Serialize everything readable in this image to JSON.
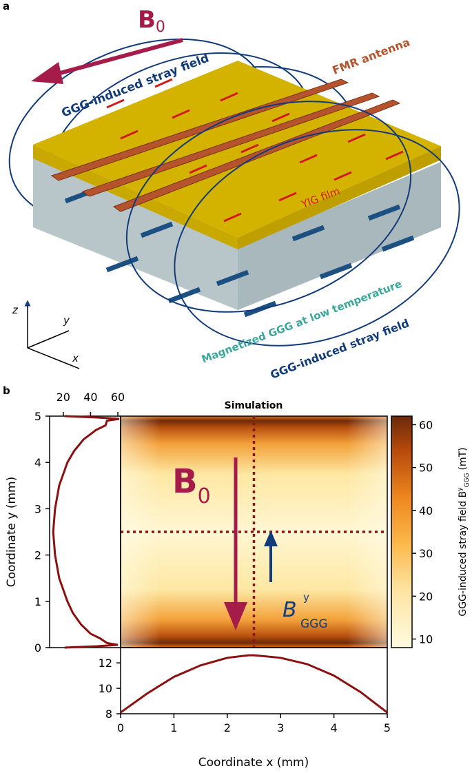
{
  "panel_a": {
    "label": "a",
    "b0_label": "B",
    "b0_sub": "0",
    "stray_field_label_top": "GGG-induced stray field",
    "stray_field_label_bottom": "GGG-induced stray field",
    "fmr_antenna_label": "FMR antenna",
    "yig_film_label": "YIG film",
    "ggg_label": "Magnetized GGG at low temperature",
    "axes": {
      "z": "z",
      "y": "y",
      "x": "x"
    },
    "colors": {
      "b0": "#a51c4a",
      "field": "#123b7a",
      "yig": "#d4b200",
      "ggg": "#b9c6c9",
      "antenna": "#b5532c",
      "ggg_text": "#3aa79a"
    }
  },
  "panel_b": {
    "label": "b"
  },
  "chart_data": [
    {
      "type": "heatmap",
      "title": "Simulation",
      "xlabel": "Coordinate x (mm)",
      "ylabel": "Coordinate y (mm)",
      "xlim": [
        0,
        5
      ],
      "ylim": [
        0,
        5
      ],
      "xticks": [
        "0",
        "1",
        "2",
        "3",
        "4",
        "5"
      ],
      "yticks": [
        "0",
        "1",
        "2",
        "3",
        "4",
        "5"
      ],
      "colorbar": {
        "label": "GGG-induced stray field B",
        "label_sup": "y",
        "label_sub": "GGG",
        "label_unit": "(mT)",
        "range": [
          8,
          62
        ],
        "ticks": [
          "10",
          "20",
          "30",
          "40",
          "50",
          "60"
        ]
      },
      "annotations": {
        "b0": "B",
        "b0_sub": "0",
        "bggg": "B",
        "bggg_sup": "y",
        "bggg_sub": "GGG"
      },
      "cut_lines": {
        "x": 2.5,
        "y": 2.5
      }
    },
    {
      "type": "line",
      "name": "profile along y at x=2.5",
      "xticks": [
        "20",
        "40",
        "60"
      ],
      "xlim": [
        10,
        62
      ],
      "y": [
        0,
        0.03,
        0.06,
        0.1,
        0.2,
        0.3,
        0.5,
        0.75,
        1.0,
        1.5,
        2.0,
        2.5,
        3.0,
        3.5,
        4.0,
        4.25,
        4.5,
        4.7,
        4.8,
        4.9,
        4.94,
        4.97,
        5.0
      ],
      "values": [
        21,
        45,
        60,
        52,
        47,
        40,
        33,
        27,
        23,
        17,
        14,
        12.6,
        14,
        17,
        23,
        28,
        35,
        44,
        51,
        52,
        61,
        45,
        21
      ]
    },
    {
      "type": "line",
      "name": "profile along x at y=2.5",
      "yticks": [
        "8",
        "10",
        "12"
      ],
      "ylim": [
        8,
        13.2
      ],
      "x": [
        0,
        0.5,
        1,
        1.5,
        2,
        2.4,
        2.5,
        3,
        3.5,
        4,
        4.5,
        5
      ],
      "values": [
        8.1,
        9.6,
        10.9,
        11.8,
        12.4,
        12.6,
        12.6,
        12.4,
        11.9,
        11.0,
        9.7,
        8.1
      ]
    }
  ]
}
